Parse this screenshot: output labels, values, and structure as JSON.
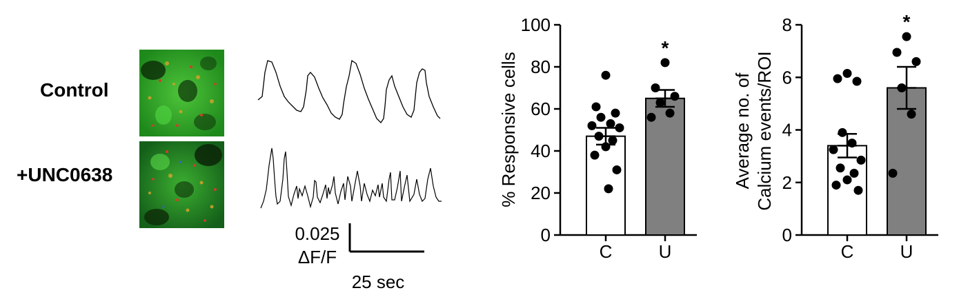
{
  "conditions": {
    "control_label": "Control",
    "treatment_label": "+UNC0638"
  },
  "scale_bar": {
    "amplitude_value": "0.025",
    "amplitude_unit": "ΔF/F",
    "time_label": "25 sec"
  },
  "chart_data": [
    {
      "type": "bar",
      "title": "",
      "xlabel": "",
      "ylabel": "% Responsive cells",
      "ylim": [
        0,
        100
      ],
      "yticks": [
        0,
        20,
        40,
        60,
        80,
        100
      ],
      "categories": [
        "C",
        "U"
      ],
      "bar_colors": [
        "#ffffff",
        "#808080"
      ],
      "means": [
        47,
        65
      ],
      "sem": [
        4,
        4
      ],
      "significance": [
        "",
        "*"
      ],
      "points": [
        [
          76,
          61,
          58,
          56,
          53,
          52,
          51,
          47,
          45,
          42,
          38,
          31,
          22
        ],
        [
          82,
          70,
          66,
          63,
          58,
          56
        ]
      ],
      "grid": false,
      "legend": "none"
    },
    {
      "type": "bar",
      "title": "",
      "xlabel": "",
      "ylabel": "Average no. of Calcium events/ROI",
      "ylabel_lines": [
        "Average no. of",
        "Calcium events/ROI"
      ],
      "ylim": [
        0,
        8
      ],
      "yticks": [
        0,
        2,
        4,
        6,
        8
      ],
      "categories": [
        "C",
        "U"
      ],
      "bar_colors": [
        "#ffffff",
        "#808080"
      ],
      "means": [
        3.4,
        5.6
      ],
      "sem": [
        0.45,
        0.8
      ],
      "significance": [
        "",
        "*"
      ],
      "points": [
        [
          6.15,
          5.95,
          5.85,
          3.9,
          3.5,
          3.25,
          2.85,
          2.55,
          2.35,
          2.1,
          1.9,
          1.7
        ],
        [
          7.55,
          6.95,
          6.6,
          5.6,
          4.6,
          2.35
        ]
      ],
      "grid": false,
      "legend": "none"
    }
  ]
}
